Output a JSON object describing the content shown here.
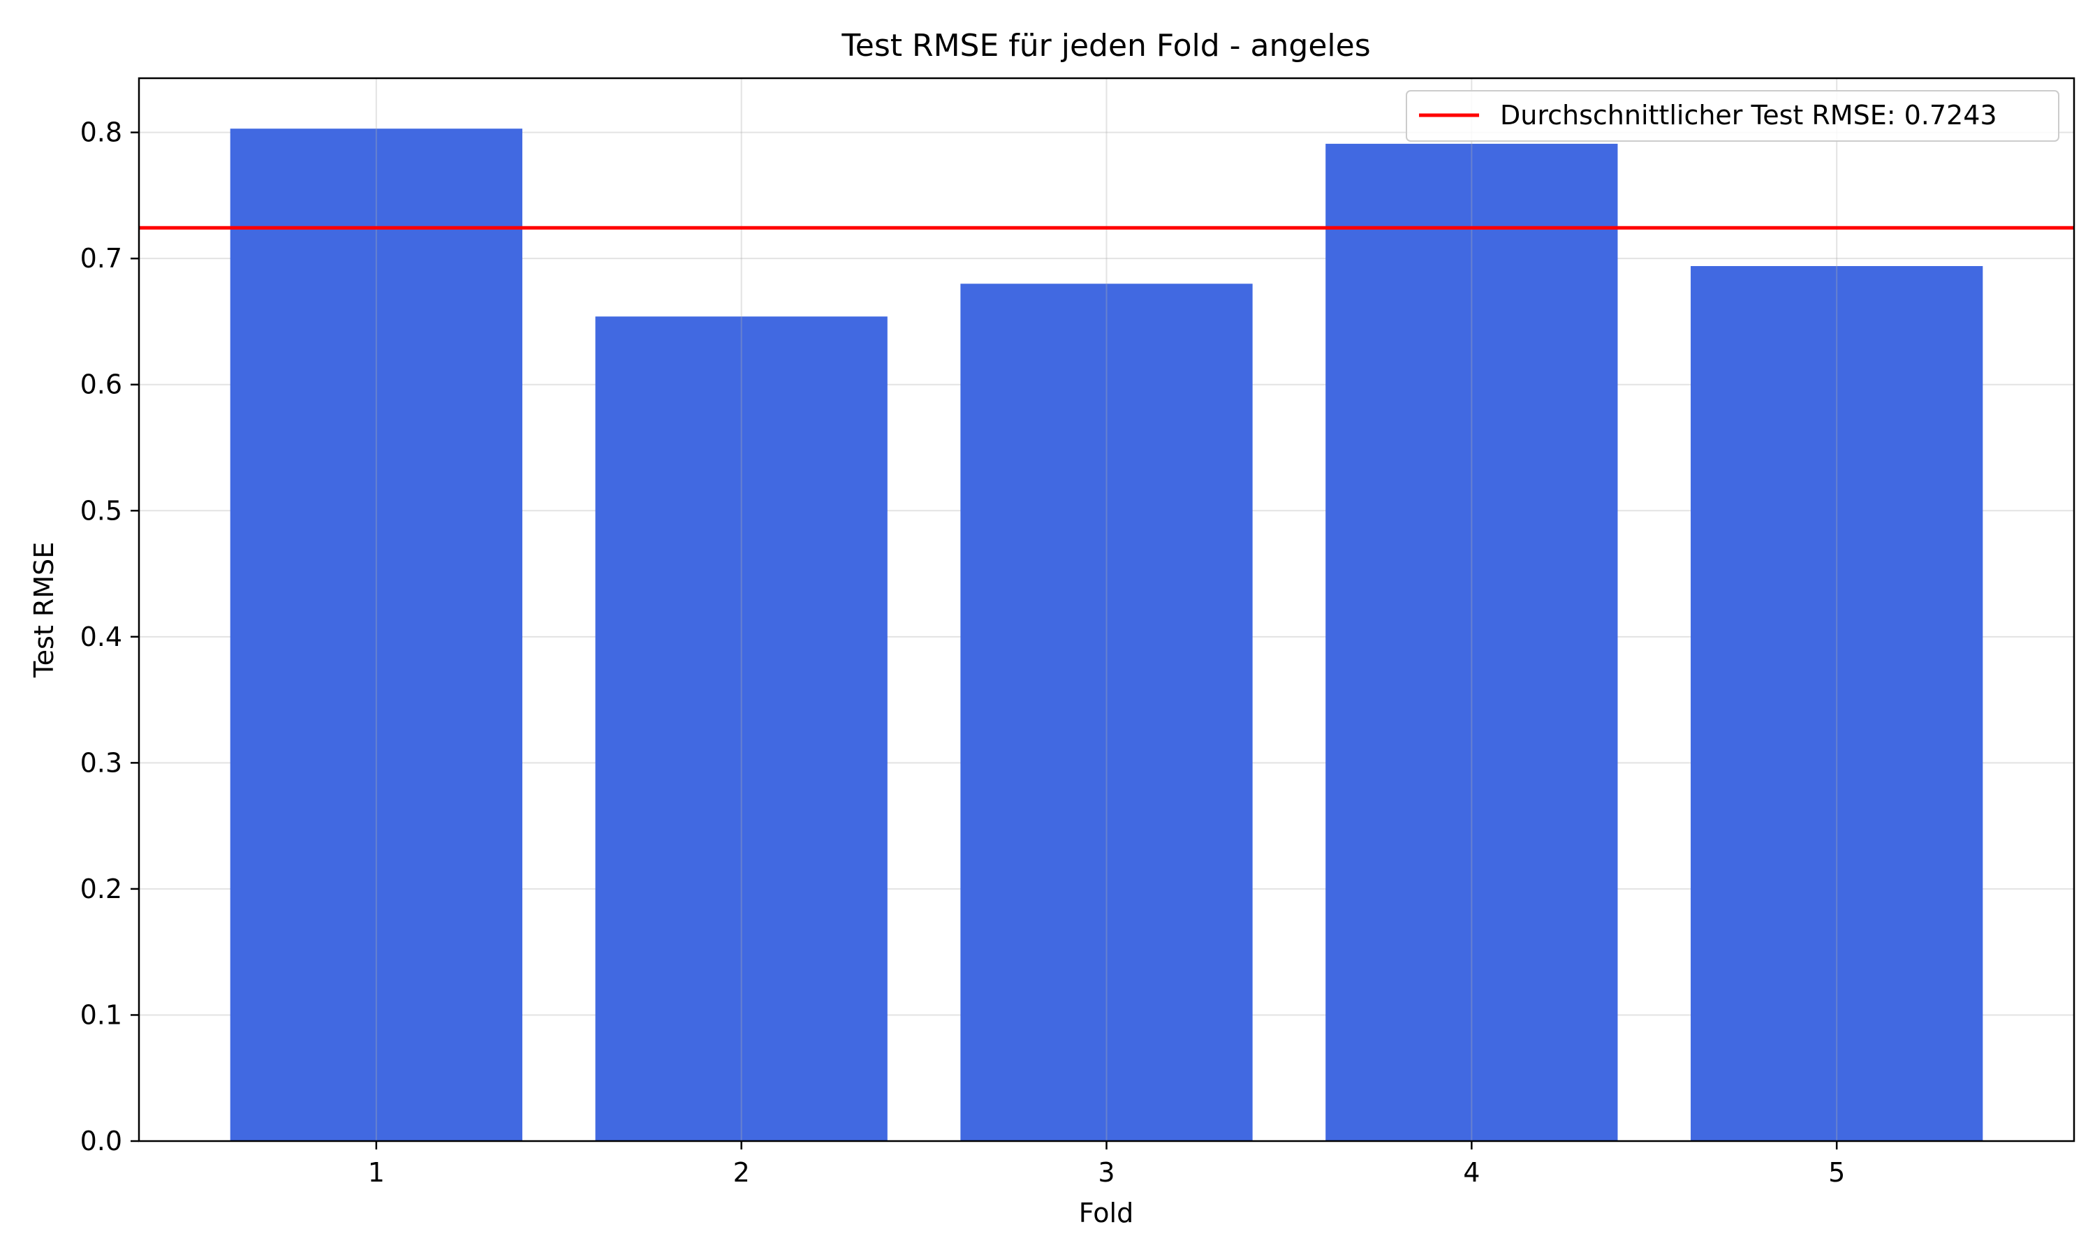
{
  "chart_data": {
    "type": "bar",
    "title": "Test RMSE für jeden Fold - angeles",
    "xlabel": "Fold",
    "ylabel": "Test RMSE",
    "categories": [
      "1",
      "2",
      "3",
      "4",
      "5"
    ],
    "values": [
      0.803,
      0.654,
      0.68,
      0.791,
      0.694
    ],
    "ylim": [
      0,
      0.843
    ],
    "yticks": [
      "0.0",
      "0.1",
      "0.2",
      "0.3",
      "0.4",
      "0.5",
      "0.6",
      "0.7",
      "0.8"
    ],
    "grid": true,
    "bar_color": "#4169e1",
    "reference_line": {
      "value": 0.7243,
      "color": "#ff0000",
      "label": "Durchschnittlicher Test RMSE: 0.7243"
    },
    "legend_position": "top-right"
  }
}
